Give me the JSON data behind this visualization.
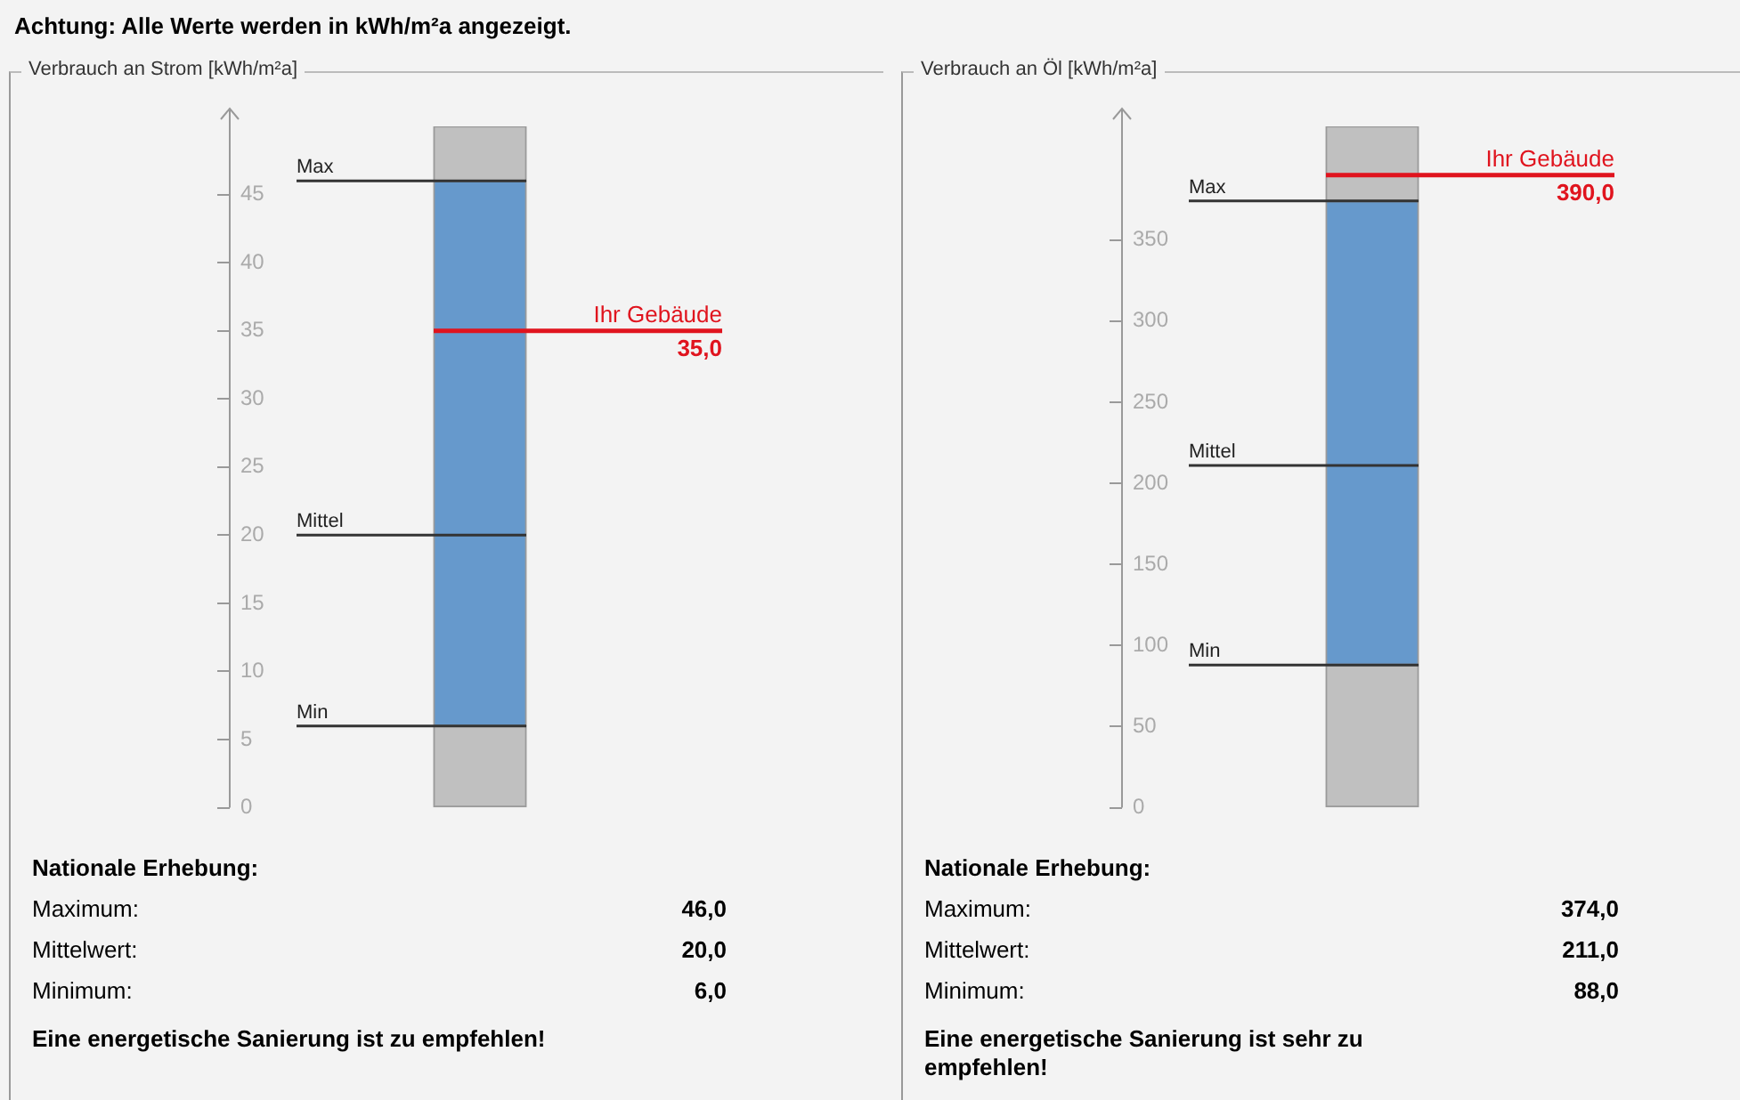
{
  "chart_data": [
    {
      "type": "other",
      "title": "Achtung: Alle Werte werden in kWh/m²a angezeigt."
    },
    {
      "type": "bar",
      "title": "Verbrauch an Strom [kWh/m²a]",
      "categories": [
        null
      ],
      "stacked": true,
      "series": [
        {
          "color": "#c0c0c0",
          "values": [
            6
          ]
        },
        {
          "color": "#6699cc",
          "values": [
            40
          ]
        },
        {
          "color": "#c0c0c0",
          "values": [
            4
          ]
        }
      ],
      "ylim": [
        0,
        50
      ],
      "yticks": [
        0,
        5,
        10,
        15,
        20,
        25,
        30,
        35,
        40,
        45
      ],
      "grid": false,
      "legend": false,
      "tick_labels": "y",
      "ref_lines": [
        {
          "axis": "y",
          "value": 46,
          "label": "Max"
        },
        {
          "axis": "y",
          "value": 20,
          "label": "Mittel"
        },
        {
          "axis": "y",
          "value": 6,
          "label": "Min"
        },
        {
          "axis": "y",
          "value": 35,
          "label": "Ihr Gebäude",
          "color": "#e0141e"
        }
      ],
      "annotations": [
        {
          "text": "35,0",
          "y": 35
        },
        "Nationale Erhebung:",
        "Maximum:",
        "46,0",
        "Mittelwert:",
        "20,0",
        "Minimum:",
        "6,0",
        "Eine energetische Sanierung ist zu empfehlen!"
      ]
    },
    {
      "type": "bar",
      "title": "Verbrauch an Öl [kWh/m²a]",
      "categories": [
        null
      ],
      "stacked": true,
      "series": [
        {
          "color": "#c0c0c0",
          "values": [
            88
          ]
        },
        {
          "color": "#6699cc",
          "values": [
            286
          ]
        },
        {
          "color": "#c0c0c0",
          "values": [
            46
          ]
        }
      ],
      "ylim": [
        0,
        420
      ],
      "yticks": [
        0,
        50,
        100,
        150,
        200,
        250,
        300,
        350
      ],
      "grid": false,
      "legend": false,
      "tick_labels": "y",
      "ref_lines": [
        {
          "axis": "y",
          "value": 374,
          "label": "Max"
        },
        {
          "axis": "y",
          "value": 211,
          "label": "Mittel"
        },
        {
          "axis": "y",
          "value": 88,
          "label": "Min"
        },
        {
          "axis": "y",
          "value": 390,
          "label": "Ihr Gebäude",
          "color": "#e0141e"
        }
      ],
      "annotations": [
        {
          "text": "390,0",
          "y": 390
        },
        "Nationale Erhebung:",
        "Maximum:",
        "374,0",
        "Mittelwert:",
        "211,0",
        "Minimum:",
        "88,0",
        "Eine energetische Sanierung ist sehr zu empfehlen!"
      ]
    }
  ]
}
